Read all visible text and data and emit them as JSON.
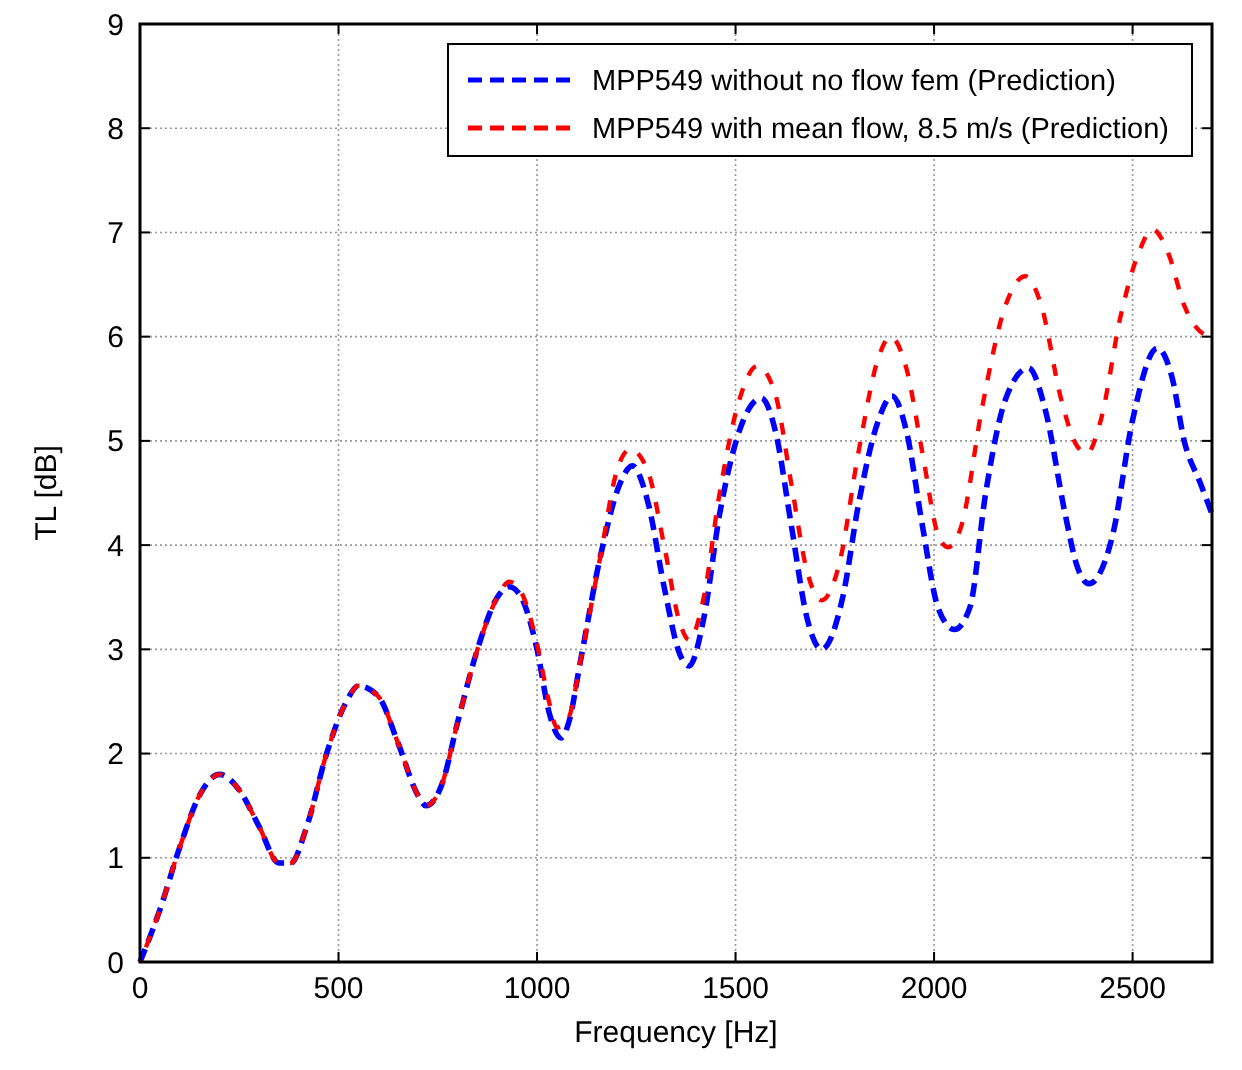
{
  "chart_data": {
    "type": "line",
    "xlabel": "Frequency [Hz]",
    "ylabel": "TL [dB]",
    "xlim": [
      0,
      2700
    ],
    "xticks": [
      0,
      500,
      1000,
      1500,
      2000,
      2500
    ],
    "ylim": [
      0,
      9
    ],
    "yticks": [
      0,
      1,
      2,
      3,
      4,
      5,
      6,
      7,
      8,
      9
    ],
    "grid": true,
    "legend": "top right",
    "line_style": "dashed",
    "marker": "none",
    "series": [
      {
        "name": "MPP549 without no flow fem (Prediction)",
        "color": "#0000ff",
        "x": [
          0,
          50,
          100,
          150,
          200,
          250,
          300,
          350,
          380,
          420,
          470,
          520,
          550,
          600,
          650,
          700,
          720,
          760,
          800,
          850,
          900,
          930,
          960,
          1000,
          1030,
          1060,
          1080,
          1110,
          1160,
          1210,
          1240,
          1280,
          1320,
          1360,
          1383,
          1420,
          1460,
          1510,
          1565,
          1600,
          1640,
          1680,
          1717,
          1770,
          1810,
          1860,
          1894,
          1930,
          1970,
          2010,
          2051,
          2090,
          2130,
          2180,
          2238,
          2280,
          2330,
          2360,
          2390,
          2450,
          2500,
          2562,
          2600,
          2630,
          2670,
          2700
        ],
        "values": [
          0,
          0.5,
          1.1,
          1.6,
          1.8,
          1.65,
          1.3,
          0.95,
          0.95,
          1.3,
          2.0,
          2.5,
          2.65,
          2.55,
          2.1,
          1.6,
          1.5,
          1.7,
          2.3,
          3.0,
          3.5,
          3.6,
          3.5,
          3.0,
          2.4,
          2.15,
          2.3,
          2.9,
          3.9,
          4.6,
          4.76,
          4.4,
          3.6,
          2.95,
          2.84,
          3.3,
          4.3,
          5.1,
          5.41,
          5.1,
          4.2,
          3.3,
          3.0,
          3.5,
          4.4,
          5.2,
          5.43,
          5.1,
          4.2,
          3.4,
          3.19,
          3.4,
          4.5,
          5.4,
          5.7,
          5.3,
          4.3,
          3.8,
          3.63,
          4.1,
          5.2,
          5.89,
          5.6,
          5.0,
          4.6,
          4.3
        ]
      },
      {
        "name": "MPP549 with mean flow, 8.5 m/s (Prediction)",
        "color": "#ff0000",
        "x": [
          0,
          50,
          100,
          150,
          200,
          250,
          300,
          350,
          380,
          420,
          470,
          520,
          550,
          600,
          650,
          700,
          720,
          760,
          800,
          850,
          900,
          930,
          960,
          1000,
          1030,
          1050,
          1080,
          1110,
          1160,
          1200,
          1235,
          1280,
          1320,
          1360,
          1383,
          1420,
          1460,
          1510,
          1555,
          1600,
          1640,
          1680,
          1717,
          1760,
          1810,
          1860,
          1890,
          1930,
          1970,
          2010,
          2035,
          2070,
          2120,
          2180,
          2230,
          2270,
          2320,
          2360,
          2385,
          2420,
          2470,
          2520,
          2550,
          2590,
          2630,
          2670,
          2700
        ],
        "values": [
          0,
          0.5,
          1.1,
          1.6,
          1.8,
          1.65,
          1.3,
          0.95,
          0.95,
          1.3,
          2.0,
          2.5,
          2.65,
          2.55,
          2.1,
          1.6,
          1.5,
          1.7,
          2.3,
          3.0,
          3.5,
          3.65,
          3.55,
          3.05,
          2.5,
          2.25,
          2.35,
          2.9,
          3.9,
          4.7,
          4.92,
          4.7,
          4.0,
          3.25,
          3.09,
          3.5,
          4.5,
          5.4,
          5.72,
          5.45,
          4.6,
          3.75,
          3.47,
          3.8,
          4.9,
          5.8,
          6.0,
          5.7,
          4.9,
          4.1,
          3.98,
          4.2,
          5.3,
          6.3,
          6.58,
          6.3,
          5.4,
          4.95,
          4.88,
          5.2,
          6.2,
          6.85,
          7.03,
          6.8,
          6.3,
          6.05,
          6.0
        ]
      }
    ]
  }
}
